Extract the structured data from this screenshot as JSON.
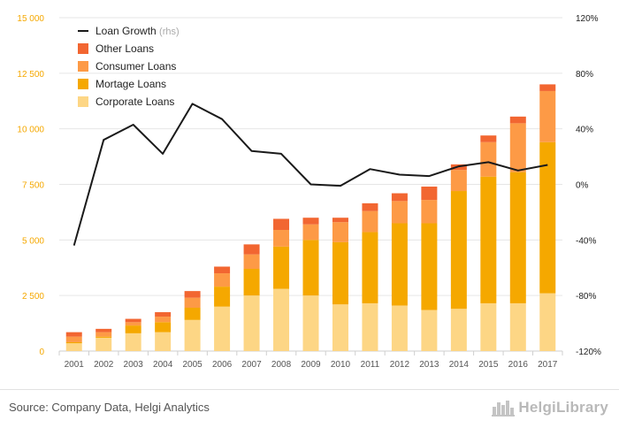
{
  "chart_data": {
    "type": "bar",
    "stacked": true,
    "categories": [
      "2001",
      "2002",
      "2003",
      "2004",
      "2005",
      "2006",
      "2007",
      "2008",
      "2009",
      "2010",
      "2011",
      "2012",
      "2013",
      "2014",
      "2015",
      "2016",
      "2017"
    ],
    "series": [
      {
        "name": "Corporate Loans",
        "color": "#fdd685",
        "values": [
          350,
          600,
          800,
          850,
          1400,
          2000,
          2500,
          2800,
          2500,
          2100,
          2150,
          2050,
          1850,
          1900,
          2150,
          2150,
          2600
        ]
      },
      {
        "name": "Mortage Loans",
        "color": "#f5a800",
        "values": [
          50,
          50,
          350,
          450,
          550,
          900,
          1200,
          1900,
          2500,
          2800,
          3200,
          3700,
          3900,
          5300,
          5700,
          5900,
          6800
        ]
      },
      {
        "name": "Consumer Loans",
        "color": "#fd9a46",
        "values": [
          250,
          200,
          150,
          250,
          450,
          600,
          650,
          750,
          700,
          900,
          950,
          1000,
          1050,
          950,
          1550,
          2200,
          2300
        ]
      },
      {
        "name": "Other Loans",
        "color": "#f26631",
        "values": [
          200,
          150,
          150,
          200,
          300,
          300,
          450,
          500,
          300,
          200,
          350,
          350,
          600,
          250,
          300,
          300,
          300
        ]
      }
    ],
    "line": {
      "name": "Loan Growth",
      "unit_note": "(rhs)",
      "color": "#1a1a1a",
      "values": [
        -44,
        32,
        43,
        22,
        58,
        47,
        24,
        22,
        0,
        -1,
        11,
        7,
        6,
        13,
        16,
        10,
        14
      ]
    },
    "y_left": {
      "min": 0,
      "max": 15000,
      "ticks": [
        "0",
        "2 500",
        "5 000",
        "7 500",
        "10 000",
        "12 500",
        "15 000"
      ],
      "tick_color": "#f5a800"
    },
    "y_right": {
      "min": -120,
      "max": 120,
      "ticks": [
        "-120%",
        "-80%",
        "-40%",
        "0%",
        "40%",
        "80%",
        "120%"
      ]
    },
    "legend_position": "top-left",
    "grid": true
  },
  "footer": {
    "source": "Source: Company Data, Helgi Analytics",
    "logo_text": "HelgiLibrary",
    "logo_icon": "city-skyline-icon"
  }
}
